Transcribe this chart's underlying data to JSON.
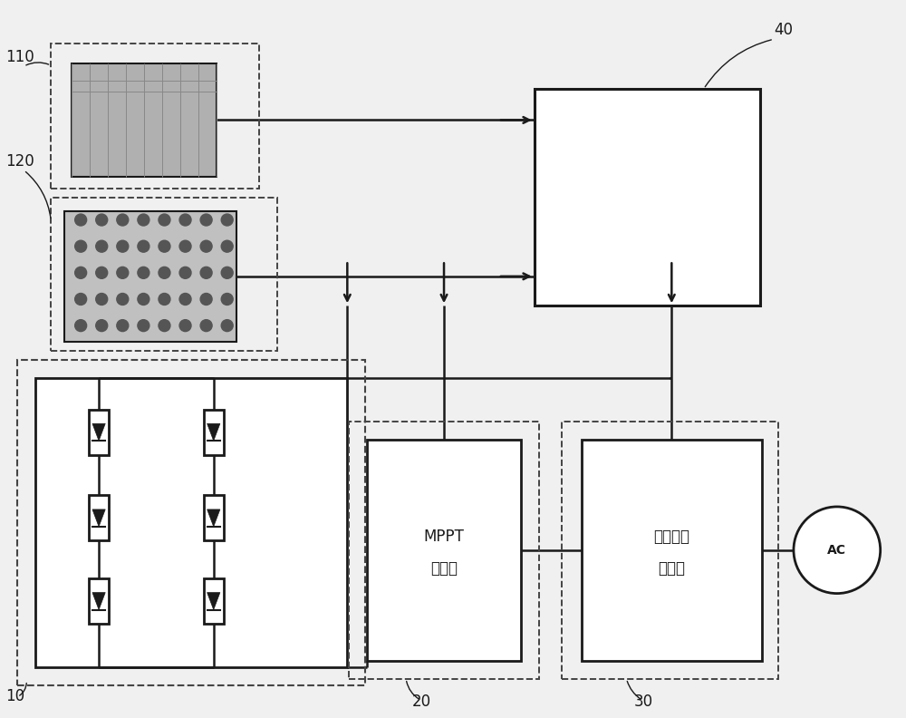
{
  "bg_color": "#f0f0f0",
  "label_110": "110",
  "label_120": "120",
  "label_10": "10",
  "label_20": "20",
  "label_30": "30",
  "label_40": "40",
  "mppt_line1": "MPPT",
  "mppt_line2": "控制器",
  "inv_line1": "光伏并网",
  "inv_line2": "逆变器",
  "ac_text": "AC",
  "line_color": "#1a1a1a",
  "dashed_color": "#444444",
  "box_fill": "#ffffff",
  "panel1_fill": "#b0b0b0",
  "panel2_fill": "#c0c0c0",
  "dot_color": "#555555"
}
